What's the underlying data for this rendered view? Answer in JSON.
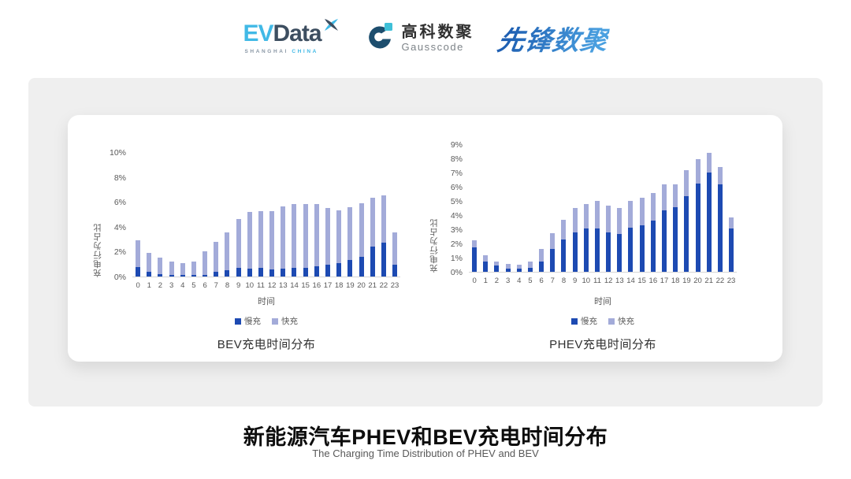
{
  "header": {
    "evdata": {
      "ev": "EV",
      "data": "Data",
      "sub_shanghai": "SHANGHAI",
      "sub_china": "CHINA"
    },
    "gausscode": {
      "cn": "高科数聚",
      "en": "Gausscode"
    },
    "xianfeng": {
      "text": "先锋数聚"
    }
  },
  "footer": {
    "title": "新能源汽车PHEV和BEV充电时间分布",
    "subtitle": "The Charging Time Distribution of PHEV and BEV"
  },
  "colors": {
    "slow_charge": "#1d4ab2",
    "fast_charge": "#a3abd9",
    "axis_text": "#595959",
    "axis_line": "#d6d6d6",
    "panel_bg": "#efefef"
  },
  "chart_data": [
    {
      "type": "bar",
      "stacked": true,
      "title": "BEV充电时间分布",
      "xlabel": "时间",
      "ylabel": "充电行为占比",
      "ylim": [
        0,
        10
      ],
      "ytick_step": 2,
      "ytick_suffix": "%",
      "grid": false,
      "legend_position": "bottom",
      "categories": [
        "0",
        "1",
        "2",
        "3",
        "4",
        "5",
        "6",
        "7",
        "8",
        "9",
        "10",
        "11",
        "12",
        "13",
        "14",
        "15",
        "16",
        "17",
        "18",
        "19",
        "20",
        "21",
        "22",
        "23"
      ],
      "series": [
        {
          "name": "慢充",
          "color": "#1d4ab2",
          "values": [
            0.75,
            0.35,
            0.2,
            0.1,
            0.1,
            0.1,
            0.15,
            0.35,
            0.5,
            0.7,
            0.65,
            0.7,
            0.6,
            0.65,
            0.7,
            0.7,
            0.8,
            0.95,
            1.1,
            1.3,
            1.6,
            2.4,
            2.75,
            0.95
          ]
        },
        {
          "name": "快充",
          "color": "#a3abd9",
          "values": [
            2.15,
            1.55,
            1.3,
            1.1,
            1.0,
            1.1,
            1.85,
            2.45,
            3.05,
            3.9,
            4.55,
            4.55,
            4.65,
            5.0,
            5.1,
            5.1,
            5.05,
            4.55,
            4.2,
            4.3,
            4.3,
            3.9,
            3.8,
            2.6
          ]
        }
      ],
      "totals": [
        2.9,
        1.9,
        1.5,
        1.2,
        1.1,
        1.2,
        2.0,
        2.8,
        3.55,
        4.6,
        5.2,
        5.25,
        5.25,
        5.65,
        5.8,
        5.8,
        5.85,
        5.5,
        5.3,
        5.6,
        5.9,
        6.3,
        6.55,
        3.55
      ]
    },
    {
      "type": "bar",
      "stacked": true,
      "title": "PHEV充电时间分布",
      "xlabel": "时间",
      "ylabel": "充电行为占比",
      "ylim": [
        0,
        9
      ],
      "ytick_step": 1,
      "ytick_suffix": "%",
      "grid": false,
      "legend_position": "bottom",
      "categories": [
        "0",
        "1",
        "2",
        "3",
        "4",
        "5",
        "6",
        "7",
        "8",
        "9",
        "10",
        "11",
        "12",
        "13",
        "14",
        "15",
        "16",
        "17",
        "18",
        "19",
        "20",
        "21",
        "22",
        "23"
      ],
      "series": [
        {
          "name": "慢充",
          "color": "#1d4ab2",
          "values": [
            1.75,
            0.75,
            0.45,
            0.25,
            0.25,
            0.3,
            0.75,
            1.6,
            2.3,
            2.8,
            3.05,
            3.05,
            2.8,
            2.65,
            3.1,
            3.3,
            3.6,
            4.35,
            4.55,
            5.35,
            6.2,
            7.0,
            6.15,
            3.05
          ]
        },
        {
          "name": "快充",
          "color": "#a3abd9",
          "values": [
            0.5,
            0.4,
            0.3,
            0.3,
            0.25,
            0.4,
            0.85,
            1.15,
            1.35,
            1.7,
            1.75,
            1.95,
            1.85,
            1.85,
            1.9,
            1.95,
            1.95,
            1.8,
            1.6,
            1.8,
            1.75,
            1.4,
            1.25,
            0.8
          ]
        }
      ],
      "totals": [
        2.25,
        1.15,
        0.75,
        0.55,
        0.5,
        0.7,
        1.6,
        2.75,
        3.65,
        4.5,
        4.8,
        5.0,
        4.65,
        4.5,
        5.0,
        5.25,
        5.55,
        6.15,
        6.15,
        7.15,
        7.95,
        8.4,
        7.4,
        3.85
      ]
    }
  ]
}
